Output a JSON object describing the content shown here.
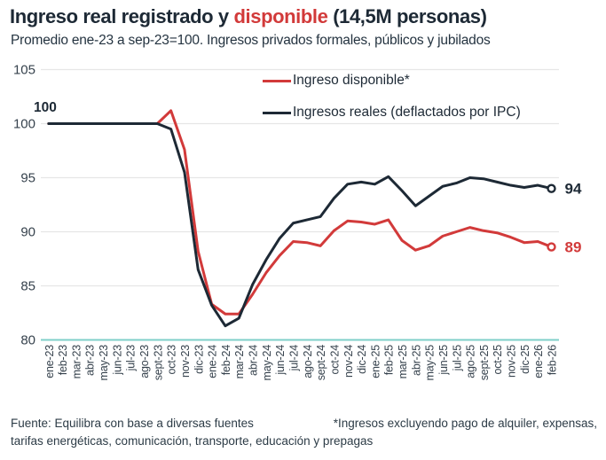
{
  "header": {
    "title_part1": "Ingreso real registrado y ",
    "title_accent": "disponible",
    "title_part3": " (14,5M personas)",
    "subtitle": "Promedio ene-23 a sep-23=100. Ingresos privados formales, públicos y jubilados"
  },
  "legend": {
    "items": [
      {
        "label": "Ingreso disponible*",
        "color": "#d23a3a"
      },
      {
        "label": "Ingresos reales (deflactados por IPC)",
        "color": "#1d2935"
      }
    ]
  },
  "footer": {
    "source": "Fuente: Equilibra con base a diversas fuentes",
    "note_line1": "*Ingresos excluyendo pago de alquiler, expensas,",
    "note_line2": "tarifas energéticas, comunicación, transporte, educación y prepagas"
  },
  "colors": {
    "dark": "#1d2935",
    "red": "#d23a3a",
    "baseline_teal": "#7fcfc9",
    "grid": "#e6e6e6",
    "tick_text": "#36424d"
  },
  "chart_data": {
    "type": "line",
    "title": "Ingreso real registrado y disponible (14,5M personas)",
    "subtitle": "Promedio ene-23 a sep-23=100. Ingresos privados formales, públicos y jubilados",
    "ylim": [
      80,
      105
    ],
    "yticks": [
      105,
      100,
      95,
      90,
      85,
      80
    ],
    "grid": true,
    "legend_position": "top-center",
    "start_label": "100",
    "x_labels": [
      "ene-23",
      "feb-23",
      "mar-23",
      "abr-23",
      "may-23",
      "jun-23",
      "jul-23",
      "ago-23",
      "sept-23",
      "oct-23",
      "nov-23",
      "dic-23",
      "ene-24",
      "feb-24",
      "mar-24",
      "abr-24",
      "may-24",
      "jun-24",
      "jul-24",
      "ago-24",
      "sept-24",
      "oct-24",
      "nov-24",
      "dic-24",
      "ene-25",
      "feb-25",
      "mar-25",
      "abr-25",
      "may-25",
      "jun-25",
      "jul-25",
      "ago-25",
      "sept-25",
      "oct-25",
      "nov-25",
      "dic-25",
      "ene-26",
      "feb-26"
    ],
    "series": [
      {
        "name": "Ingreso disponible*",
        "color": "#d23a3a",
        "end_label": "89",
        "values": [
          100,
          100,
          100,
          100,
          100,
          100,
          100,
          100,
          100,
          101.2,
          97.6,
          88.2,
          83.3,
          82.4,
          82.4,
          84.2,
          86.2,
          87.8,
          89.1,
          89.0,
          88.7,
          90.1,
          91.0,
          90.9,
          90.7,
          91.1,
          89.2,
          88.3,
          88.7,
          89.6,
          90.0,
          90.4,
          90.1,
          89.9,
          89.5,
          89.0,
          89.1,
          88.6
        ]
      },
      {
        "name": "Ingresos reales (deflactados por IPC)",
        "color": "#1d2935",
        "end_label": "94",
        "values": [
          100,
          100,
          100,
          100,
          100,
          100,
          100,
          100,
          100,
          99.5,
          95.5,
          86.5,
          83.2,
          81.3,
          82.0,
          85.1,
          87.4,
          89.4,
          90.8,
          91.1,
          91.4,
          93.1,
          94.4,
          94.6,
          94.4,
          95.1,
          93.8,
          92.4,
          93.3,
          94.2,
          94.5,
          95.0,
          94.9,
          94.6,
          94.3,
          94.1,
          94.3,
          94.0
        ]
      }
    ]
  }
}
